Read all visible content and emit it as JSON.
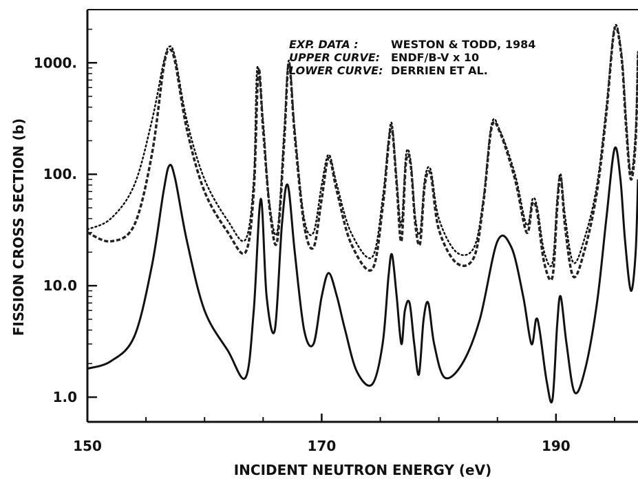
{
  "chart_data": {
    "type": "line",
    "title": "",
    "xlabel": "INCIDENT NEUTRON ENERGY (eV)",
    "ylabel": "FISSION CROSS SECTION (b)",
    "xlim": [
      150,
      197
    ],
    "ylim": [
      0.6,
      3000
    ],
    "yscale": "log",
    "grid": false,
    "x_ticks": [
      {
        "value": 150,
        "label": "150"
      },
      {
        "value": 170,
        "label": "170"
      },
      {
        "value": 190,
        "label": "190"
      }
    ],
    "y_ticks": [
      {
        "value": 1,
        "label": "1.0"
      },
      {
        "value": 10,
        "label": "10.0"
      },
      {
        "value": 100,
        "label": "100."
      },
      {
        "value": 1000,
        "label": "1000."
      }
    ],
    "annotations": [
      {
        "key": "EXP. DATA :",
        "value": "WESTON & TODD, 1984"
      },
      {
        "key": "UPPER CURVE:",
        "value": "ENDF/B-V  x 10"
      },
      {
        "key": "LOWER CURVE:",
        "value": "DERRIEN ET AL."
      }
    ],
    "series": [
      {
        "style": "solid",
        "x": [
          150,
          152,
          154,
          155.5,
          156.5,
          157,
          157.5,
          158.5,
          160,
          162,
          163.5,
          164.2,
          164.8,
          165.3,
          166,
          166.6,
          167.1,
          167.7,
          168.5,
          169.3,
          170,
          170.6,
          171.3,
          172,
          173,
          174.3,
          175.2,
          175.7,
          176,
          176.4,
          176.8,
          177.1,
          177.5,
          177.9,
          178.3,
          178.7,
          179.1,
          179.6,
          180.5,
          182,
          183.5,
          185,
          186.2,
          187.2,
          187.9,
          188.3,
          188.6,
          189.2,
          189.7,
          190.1,
          190.4,
          190.9,
          191.6,
          192.5,
          193.5,
          194.3,
          195,
          195.5,
          195.9,
          196.4,
          196.8,
          197
        ],
        "y": [
          1.8,
          2.1,
          3.5,
          15,
          70,
          120,
          90,
          25,
          6,
          2.6,
          1.5,
          6,
          60,
          8,
          4,
          35,
          80,
          20,
          4,
          3,
          8,
          13,
          8,
          4,
          1.7,
          1.3,
          3,
          12,
          19,
          8,
          3,
          6,
          7,
          3,
          1.6,
          5,
          7,
          3,
          1.5,
          2,
          5,
          25,
          22,
          8,
          3,
          5,
          4,
          1.4,
          0.95,
          4.5,
          8,
          3,
          1.1,
          1.8,
          7,
          40,
          170,
          90,
          25,
          9,
          20,
          90
        ]
      },
      {
        "style": "dotted",
        "x": [
          150,
          152,
          154,
          155.5,
          156.5,
          157,
          157.5,
          158.5,
          160,
          162,
          163.5,
          164.2,
          164.5,
          165,
          165.5,
          166.2,
          166.8,
          167.2,
          167.7,
          168.5,
          169.3,
          170,
          170.6,
          171.3,
          172.5,
          174.3,
          175.2,
          175.7,
          176,
          176.4,
          176.8,
          177.2,
          177.6,
          178,
          178.4,
          178.8,
          179.3,
          180,
          181.5,
          183,
          183.8,
          184.5,
          185.2,
          186.5,
          187.5,
          188,
          188.4,
          189,
          189.7,
          190.1,
          190.4,
          190.8,
          191.5,
          192.5,
          193.5,
          194.3,
          195,
          195.6,
          196,
          196.4,
          196.8,
          197
        ],
        "y": [
          32,
          40,
          80,
          300,
          1000,
          1400,
          1100,
          300,
          90,
          38,
          26,
          90,
          900,
          300,
          60,
          30,
          250,
          1050,
          250,
          40,
          30,
          80,
          150,
          80,
          30,
          18,
          60,
          200,
          280,
          90,
          35,
          150,
          130,
          40,
          30,
          90,
          110,
          40,
          20,
          22,
          60,
          280,
          250,
          100,
          35,
          60,
          50,
          20,
          16,
          60,
          100,
          40,
          16,
          28,
          80,
          400,
          2100,
          1200,
          300,
          100,
          250,
          1300
        ]
      },
      {
        "style": "dashed",
        "x": [
          150,
          152,
          154,
          155.5,
          156.5,
          157,
          157.5,
          158.5,
          160,
          162,
          163.5,
          164.2,
          164.6,
          165,
          165.6,
          166.2,
          166.8,
          167.2,
          167.7,
          168.5,
          169.3,
          170,
          170.6,
          171.3,
          172.5,
          174.3,
          175.2,
          175.7,
          176,
          176.4,
          176.8,
          177.2,
          177.6,
          178,
          178.4,
          178.8,
          179.3,
          180,
          181.5,
          183,
          183.8,
          184.5,
          185.2,
          186.5,
          187.5,
          188,
          188.4,
          189,
          189.7,
          190.1,
          190.4,
          190.8,
          191.5,
          192.5,
          193.5,
          194.3,
          195,
          195.6,
          196,
          196.4,
          196.8,
          197
        ],
        "y": [
          30,
          25,
          35,
          150,
          900,
          1300,
          1000,
          250,
          70,
          30,
          20,
          70,
          850,
          250,
          45,
          25,
          200,
          1000,
          220,
          35,
          22,
          60,
          140,
          70,
          24,
          14,
          50,
          180,
          260,
          80,
          25,
          130,
          120,
          35,
          24,
          80,
          100,
          32,
          16,
          18,
          55,
          260,
          240,
          90,
          30,
          55,
          45,
          16,
          12,
          50,
          95,
          32,
          12,
          22,
          70,
          350,
          2000,
          1100,
          250,
          90,
          200,
          1200
        ]
      }
    ]
  }
}
